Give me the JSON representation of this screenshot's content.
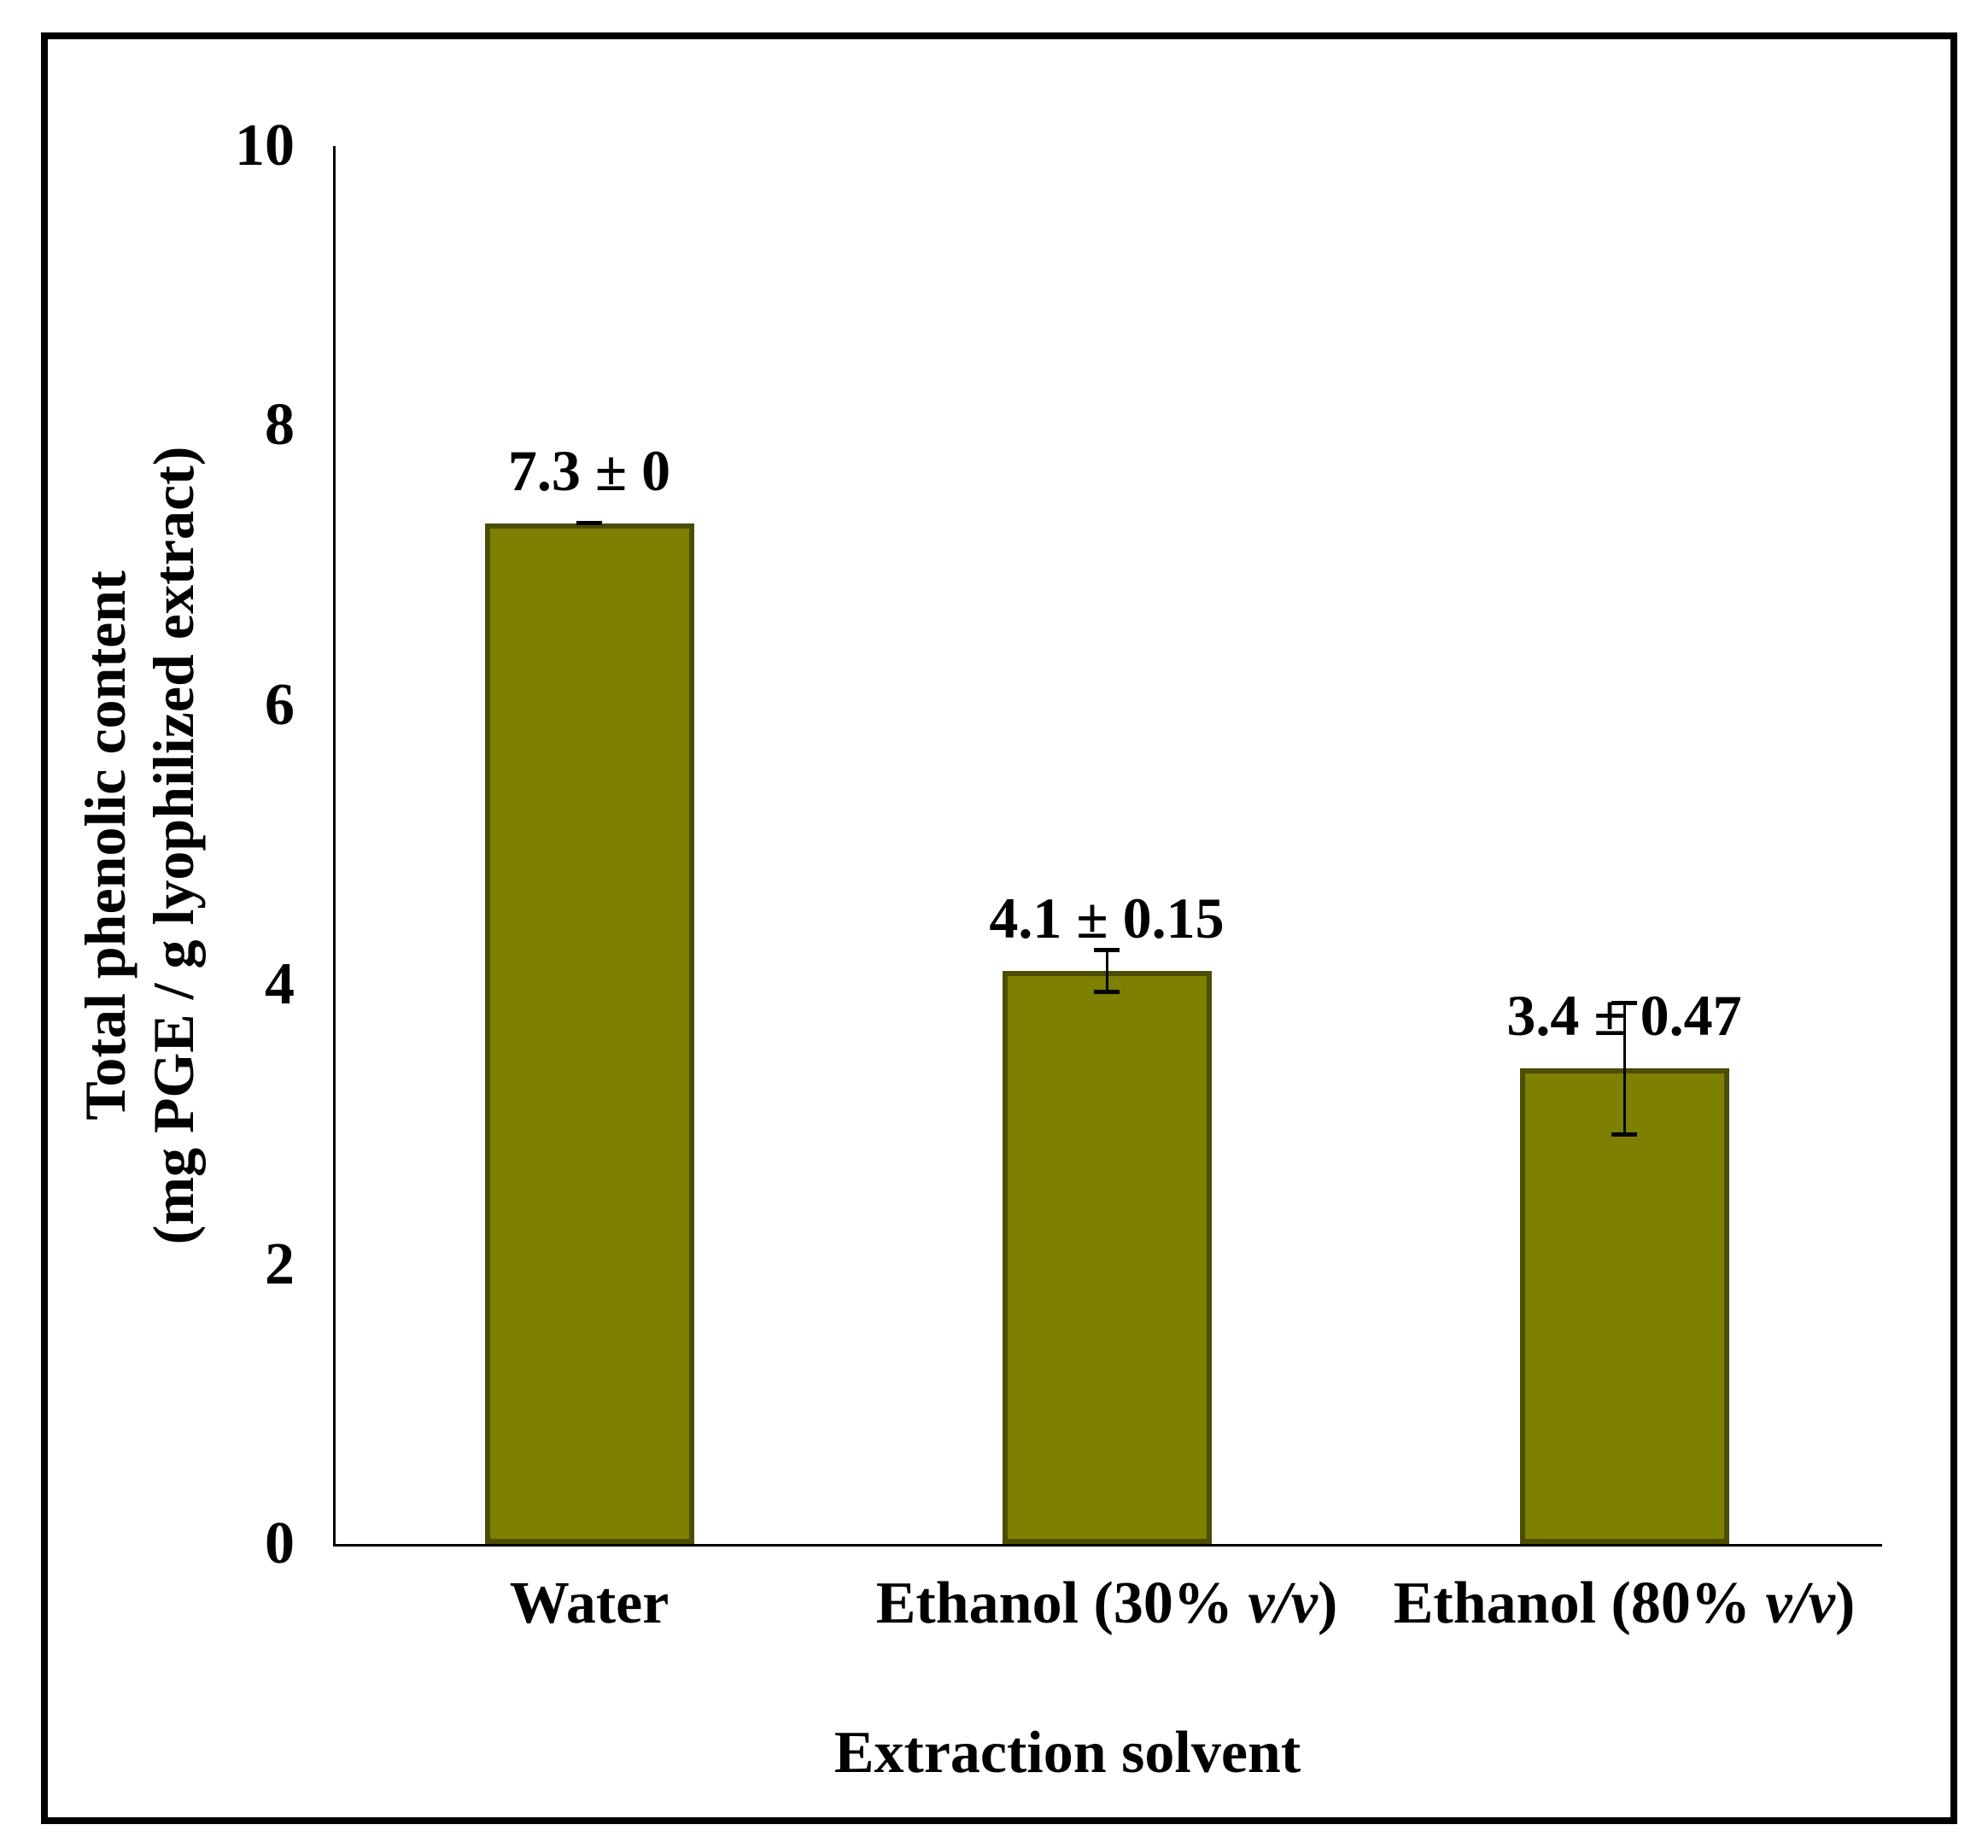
{
  "chart_data": {
    "type": "bar",
    "title": "",
    "xlabel": "Extraction solvent",
    "ylabel": "Total phenolic content (mg PGE / g lyophilized extract)",
    "ylabel_line1": "Total phenolic content",
    "ylabel_line2": "(mg PGE / g lyophilized extract)",
    "categories": [
      {
        "pre": "Water",
        "italic": "",
        "post": ""
      },
      {
        "pre": "Ethanol (30% ",
        "italic": "v/v",
        "post": ")"
      },
      {
        "pre": "Ethanol (80% ",
        "italic": "v/v",
        "post": ")"
      }
    ],
    "values": [
      7.3,
      4.1,
      3.4
    ],
    "errors": [
      0,
      0.15,
      0.47
    ],
    "value_labels": [
      "7.3 ± 0",
      "4.1 ± 0.15",
      "3.4 ± 0.47"
    ],
    "yticks": [
      0,
      2,
      4,
      6,
      8,
      10
    ],
    "ylim": [
      0,
      10
    ],
    "grid": "off",
    "legend": "none",
    "bar_fill_color": "#7D8000",
    "bar_border_color": "#4B4D00",
    "axis_color": "#000000",
    "frame_color": "#000000"
  }
}
